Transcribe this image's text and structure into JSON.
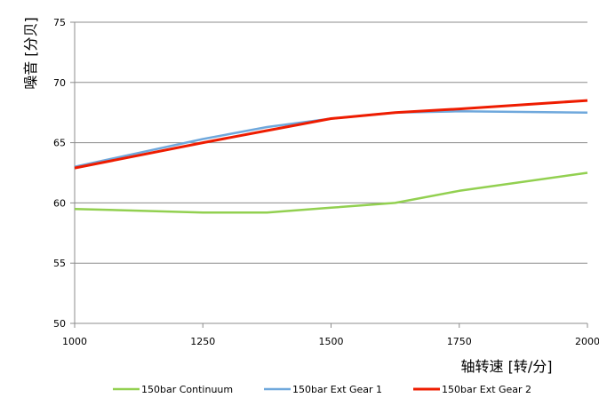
{
  "chart_data": {
    "type": "line",
    "title": "",
    "xlabel": "轴转速 [转/分]",
    "ylabel": "噪音 [分贝]",
    "xlim": [
      1000,
      2000
    ],
    "ylim": [
      50,
      75
    ],
    "x_ticks": [
      1000,
      1250,
      1500,
      1750,
      2000
    ],
    "y_ticks": [
      50,
      55,
      60,
      65,
      70,
      75
    ],
    "grid": "horizontal",
    "legend_position": "bottom",
    "series": [
      {
        "name": "150bar Continuum",
        "color": "#92d050",
        "x": [
          1000,
          1250,
          1375,
          1500,
          1625,
          1750,
          2000
        ],
        "y": [
          59.5,
          59.2,
          59.2,
          59.6,
          60.0,
          61.0,
          62.5
        ]
      },
      {
        "name": "150bar Ext Gear 1",
        "color": "#6fa8dc",
        "x": [
          1000,
          1250,
          1375,
          1500,
          1625,
          1750,
          2000
        ],
        "y": [
          63.0,
          65.3,
          66.3,
          67.0,
          67.5,
          67.6,
          67.5
        ]
      },
      {
        "name": "150bar Ext Gear 2",
        "color": "#ee1c00",
        "x": [
          1000,
          1250,
          1375,
          1500,
          1625,
          1750,
          2000
        ],
        "y": [
          62.9,
          65.0,
          66.0,
          67.0,
          67.5,
          67.8,
          68.5
        ]
      }
    ]
  }
}
